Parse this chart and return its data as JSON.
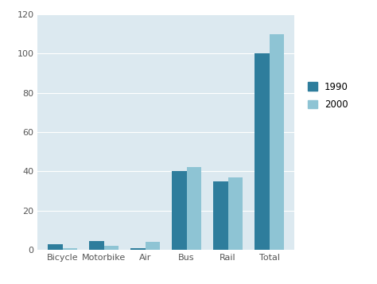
{
  "categories": [
    "Bicycle",
    "Motorbike",
    "Air",
    "Bus",
    "Rail",
    "Total"
  ],
  "values_1990": [
    3,
    4.5,
    1,
    40,
    35,
    100
  ],
  "values_2000": [
    1,
    2,
    4,
    42,
    37,
    110
  ],
  "color_1990": "#2e7d9c",
  "color_2000": "#8ec4d4",
  "ylim": [
    0,
    120
  ],
  "yticks": [
    0,
    20,
    40,
    60,
    80,
    100,
    120
  ],
  "legend_labels": [
    "1990",
    "2000"
  ],
  "plot_bg_color": "#dce9f0",
  "outer_bg_color": "#ffffff",
  "bar_width": 0.35,
  "gridcolor": "#ffffff",
  "title": ""
}
